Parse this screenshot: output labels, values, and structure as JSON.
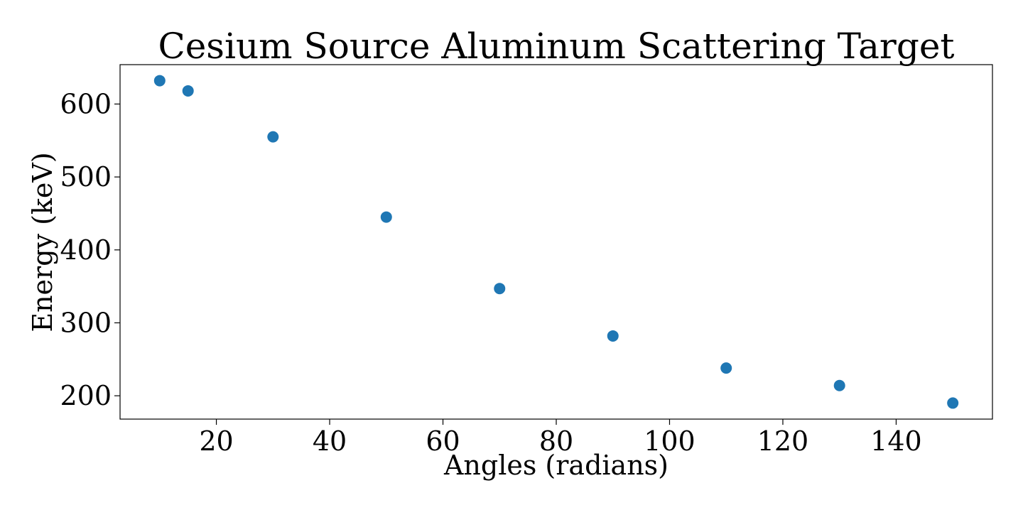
{
  "chart_data": {
    "type": "scatter",
    "title": "Cesium Source Aluminum Scattering Target",
    "xlabel": "Angles (radians)",
    "ylabel": "Energy (keV)",
    "x": [
      10,
      15,
      30,
      50,
      70,
      90,
      110,
      130,
      150
    ],
    "y": [
      632,
      618,
      555,
      445,
      347,
      282,
      238,
      214,
      190
    ],
    "xlim": [
      3,
      157
    ],
    "ylim": [
      168,
      654
    ],
    "xticks": [
      20,
      40,
      60,
      80,
      100,
      120,
      140
    ],
    "yticks": [
      200,
      300,
      400,
      500,
      600
    ],
    "grid": false,
    "marker_color": "#1f77b4"
  }
}
